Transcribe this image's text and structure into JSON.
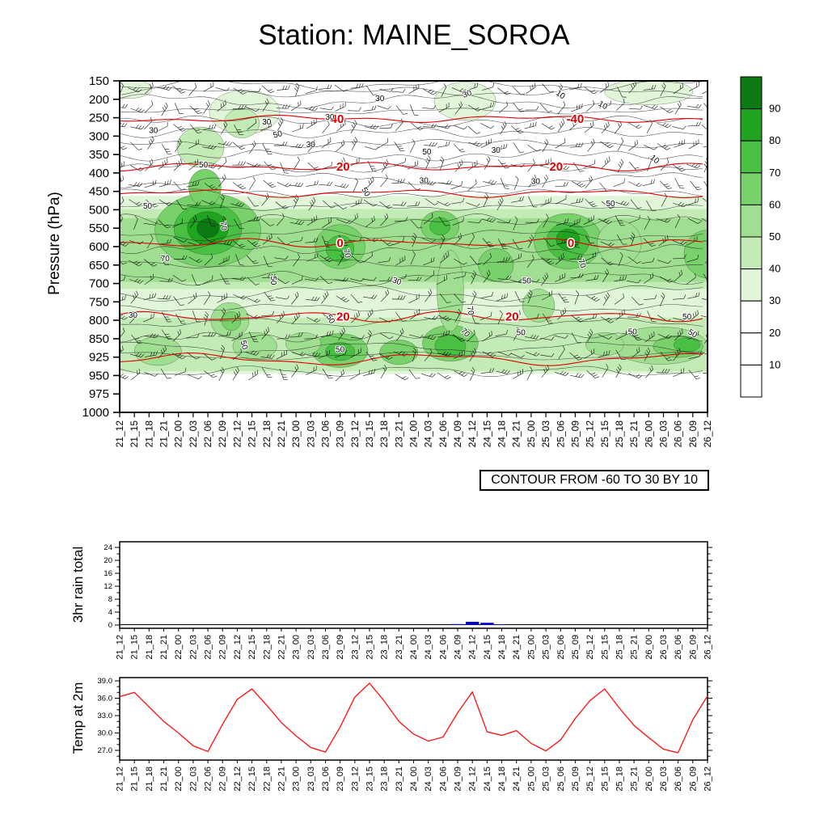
{
  "title": "Station: MAINE_SOROA",
  "labels": {
    "pressure_axis": "Pressure (hPa)",
    "rain_axis": "3hr rain total",
    "temp_axis": "Temp at 2m",
    "contour_note": "CONTOUR FROM -60 TO 30 BY 10"
  },
  "chart_data": [
    {
      "type": "heatmap",
      "name": "pressure-time cross section with shaded field, red temperature contours and wind barbs",
      "title": "Station: MAINE_SOROA",
      "ylabel": "Pressure (hPa)",
      "yticks": [
        150,
        200,
        250,
        300,
        350,
        400,
        450,
        500,
        550,
        600,
        650,
        700,
        750,
        800,
        850,
        925,
        950,
        975,
        1000
      ],
      "x": [
        "21_12",
        "21_15",
        "21_18",
        "21_21",
        "22_00",
        "22_03",
        "22_06",
        "22_09",
        "22_12",
        "22_15",
        "22_18",
        "22_21",
        "23_00",
        "23_03",
        "23_06",
        "23_09",
        "23_12",
        "23_15",
        "23_18",
        "23_21",
        "24_00",
        "24_03",
        "24_06",
        "24_09",
        "24_12",
        "24_15",
        "24_18",
        "24_21",
        "25_00",
        "25_03",
        "25_06",
        "25_09",
        "25_12",
        "25_15",
        "25_18",
        "25_21",
        "26_00",
        "26_03",
        "26_06",
        "26_09",
        "26_12"
      ],
      "contour_note": "CONTOUR FROM -60 TO 30 BY 10",
      "wind_barbs": "wind barbs plotted at every 3 h step and ~every pressure level; individual directions not legible at this scale",
      "colorbar": {
        "boundary_labels": [
          90,
          80,
          70,
          60,
          50,
          40,
          30,
          20,
          10
        ],
        "cell_colors_top_to_bottom": [
          "#0b7a12",
          "#20a41f",
          "#49bf44",
          "#78d16a",
          "#a0df91",
          "#c3ebb5",
          "#e1f6d9",
          "#ffffff",
          "#ffffff",
          "#ffffff"
        ]
      },
      "shading_note": "green shaded classes 30-90 (estimated regions below), white below 30; shading ends at 950 hPa",
      "bands": [
        {
          "p0": 462,
          "p1": 948,
          "lv": 30
        },
        {
          "p0": 498,
          "p1": 715,
          "lv": 40
        },
        {
          "p0": 523,
          "p1": 696,
          "lv": 50
        },
        {
          "p0": 793,
          "p1": 944,
          "lv": 40
        }
      ],
      "blobs": [
        {
          "t": 6,
          "p": 555,
          "rt": 3.6,
          "rp": 100,
          "lv": 60
        },
        {
          "t": 6,
          "p": 552,
          "rt": 2.3,
          "rp": 70,
          "lv": 70
        },
        {
          "t": 6,
          "p": 550,
          "rt": 1.4,
          "rp": 45,
          "lv": 80
        },
        {
          "t": 6,
          "p": 550,
          "rt": 0.75,
          "rp": 26,
          "lv": 90
        },
        {
          "t": 5.8,
          "p": 440,
          "rt": 1.1,
          "rp": 50,
          "lv": 60
        },
        {
          "t": 5.5,
          "p": 330,
          "rt": 1.6,
          "rp": 55,
          "lv": 40
        },
        {
          "t": 8.5,
          "p": 235,
          "rt": 2.4,
          "rp": 60,
          "lv": 30
        },
        {
          "t": 8.3,
          "p": 265,
          "rt": 1.2,
          "rp": 40,
          "lv": 40
        },
        {
          "t": 15,
          "p": 600,
          "rt": 1.7,
          "rp": 60,
          "lv": 60
        },
        {
          "t": 15,
          "p": 606,
          "rt": 0.95,
          "rp": 36,
          "lv": 70
        },
        {
          "t": 21.8,
          "p": 545,
          "rt": 1.3,
          "rp": 42,
          "lv": 60
        },
        {
          "t": 21.8,
          "p": 545,
          "rt": 0.7,
          "rp": 24,
          "lv": 70
        },
        {
          "t": 25.6,
          "p": 650,
          "rt": 1.2,
          "rp": 45,
          "lv": 60
        },
        {
          "t": 30.5,
          "p": 585,
          "rt": 2.3,
          "rp": 75,
          "lv": 60
        },
        {
          "t": 30.5,
          "p": 585,
          "rt": 1.45,
          "rp": 50,
          "lv": 70
        },
        {
          "t": 30.5,
          "p": 580,
          "rt": 0.8,
          "rp": 28,
          "lv": 80
        },
        {
          "t": 40,
          "p": 620,
          "rt": 1.6,
          "rp": 65,
          "lv": 60
        },
        {
          "t": 7.5,
          "p": 800,
          "rt": 1.3,
          "rp": 48,
          "lv": 50
        },
        {
          "t": 7.6,
          "p": 802,
          "rt": 0.65,
          "rp": 26,
          "lv": 60
        },
        {
          "t": 9.2,
          "p": 880,
          "rt": 1.5,
          "rp": 48,
          "lv": 50
        },
        {
          "t": 15,
          "p": 898,
          "rt": 1.9,
          "rp": 48,
          "lv": 60
        },
        {
          "t": 15,
          "p": 902,
          "rt": 1.0,
          "rp": 30,
          "lv": 70
        },
        {
          "t": 22.5,
          "p": 868,
          "rt": 1.9,
          "rp": 60,
          "lv": 60
        },
        {
          "t": 22.5,
          "p": 878,
          "rt": 1.05,
          "rp": 40,
          "lv": 70
        },
        {
          "t": 22.5,
          "p": 720,
          "rt": 0.9,
          "rp": 110,
          "lv": 50
        },
        {
          "t": 36.8,
          "p": 878,
          "rt": 3.2,
          "rp": 58,
          "lv": 50
        },
        {
          "t": 38,
          "p": 882,
          "rt": 1.7,
          "rp": 42,
          "lv": 60
        },
        {
          "t": 38.6,
          "p": 875,
          "rt": 0.9,
          "rp": 28,
          "lv": 70
        },
        {
          "t": 33,
          "p": 872,
          "rt": 1.3,
          "rp": 42,
          "lv": 50
        },
        {
          "t": 2.6,
          "p": 900,
          "rt": 1.6,
          "rp": 42,
          "lv": 50
        },
        {
          "t": 23.5,
          "p": 205,
          "rt": 2.1,
          "rp": 52,
          "lv": 30
        },
        {
          "t": 36,
          "p": 180,
          "rt": 3.0,
          "rp": 40,
          "lv": 30
        },
        {
          "t": 0.6,
          "p": 172,
          "rt": 1.6,
          "rp": 30,
          "lv": 30
        },
        {
          "t": 12.5,
          "p": 870,
          "rt": 1.2,
          "rp": 40,
          "lv": 50
        },
        {
          "t": 19,
          "p": 905,
          "rt": 1.3,
          "rp": 35,
          "lv": 60
        },
        {
          "t": 28.5,
          "p": 760,
          "rt": 1.1,
          "rp": 45,
          "lv": 50
        },
        {
          "t": 34,
          "p": 590,
          "rt": 1.5,
          "rp": 60,
          "lv": 50
        }
      ],
      "red_contours": [
        {
          "p": 253,
          "amp": 4,
          "labels": [
            {
              "text": "40",
              "t": 14.8
            },
            {
              "text": "-40",
              "t": 31.0
            }
          ]
        },
        {
          "p": 383,
          "amp": 5,
          "labels": [
            {
              "text": "20",
              "t": 15.2
            },
            {
              "text": "20",
              "t": 29.7
            }
          ]
        },
        {
          "p": 455,
          "amp": 4,
          "labels": []
        },
        {
          "p": 590,
          "amp": 5,
          "labels": [
            {
              "text": "0",
              "t": 15.0
            },
            {
              "text": "0",
              "t": 30.7
            }
          ]
        },
        {
          "p": 790,
          "amp": 5,
          "labels": [
            {
              "text": "20",
              "t": 15.2
            },
            {
              "text": "20",
              "t": 26.7
            }
          ]
        },
        {
          "p": 928,
          "amp": 9,
          "labels": []
        }
      ],
      "black_contour_labels": [
        {
          "text": "30",
          "t": 17.7,
          "p": 205,
          "rot": 0
        },
        {
          "text": "30",
          "t": 23.7,
          "p": 192,
          "rot": -20
        },
        {
          "text": "10",
          "t": 32.8,
          "p": 222,
          "rot": 30
        },
        {
          "text": "10",
          "t": 36.3,
          "p": 368,
          "rot": 40
        },
        {
          "text": "30",
          "t": 10.0,
          "p": 268,
          "rot": 0
        },
        {
          "text": "30",
          "t": 2.3,
          "p": 292,
          "rot": 0
        },
        {
          "text": "50",
          "t": 10.8,
          "p": 302,
          "rot": -15
        },
        {
          "text": "50",
          "t": 5.7,
          "p": 385,
          "rot": 0
        },
        {
          "text": "70",
          "t": 6.9,
          "p": 545,
          "rot": 80
        },
        {
          "text": "70",
          "t": 3.1,
          "p": 640,
          "rot": 0
        },
        {
          "text": "70",
          "t": 15.3,
          "p": 620,
          "rot": 75
        },
        {
          "text": "70",
          "t": 31.3,
          "p": 648,
          "rot": 70
        },
        {
          "text": "50",
          "t": 16.6,
          "p": 455,
          "rot": 60
        },
        {
          "text": "50",
          "t": 27.7,
          "p": 700,
          "rot": 0
        },
        {
          "text": "50",
          "t": 33.4,
          "p": 490,
          "rot": 0
        },
        {
          "text": "30",
          "t": 28.3,
          "p": 430,
          "rot": 0
        },
        {
          "text": "50",
          "t": 1.9,
          "p": 497,
          "rot": 0
        },
        {
          "text": "50",
          "t": 20.9,
          "p": 350,
          "rot": 0
        },
        {
          "text": "30",
          "t": 20.7,
          "p": 428,
          "rot": 0
        },
        {
          "text": "70",
          "t": 23.7,
          "p": 775,
          "rot": 80
        },
        {
          "text": "70",
          "t": 23.4,
          "p": 838,
          "rot": 45
        },
        {
          "text": "50",
          "t": 10.3,
          "p": 692,
          "rot": 90
        },
        {
          "text": "50",
          "t": 14.2,
          "p": 800,
          "rot": 60
        },
        {
          "text": "50",
          "t": 27.3,
          "p": 840,
          "rot": 0
        },
        {
          "text": "50",
          "t": 38.6,
          "p": 798,
          "rot": 0
        },
        {
          "text": "50",
          "t": 38.9,
          "p": 842,
          "rot": 30
        },
        {
          "text": "30",
          "t": 0.9,
          "p": 793,
          "rot": 0
        },
        {
          "text": "50",
          "t": 8.3,
          "p": 878,
          "rot": 75
        },
        {
          "text": "30",
          "t": 13.0,
          "p": 330,
          "rot": 0
        },
        {
          "text": "30",
          "t": 18.8,
          "p": 700,
          "rot": 20
        },
        {
          "text": "30",
          "t": 25.6,
          "p": 345,
          "rot": 0
        },
        {
          "text": "10",
          "t": 29.9,
          "p": 193,
          "rot": 35
        },
        {
          "text": "30",
          "t": 14.3,
          "p": 255,
          "rot": 0
        },
        {
          "text": "50",
          "t": 15.0,
          "p": 905,
          "rot": 0
        },
        {
          "text": "50",
          "t": 34.9,
          "p": 838,
          "rot": 0
        }
      ]
    },
    {
      "type": "bar",
      "title": "3hr rain total",
      "ylabel": "3hr rain total",
      "yticks": [
        0,
        4,
        8,
        12,
        16,
        20,
        24
      ],
      "ylim": [
        0,
        26
      ],
      "bar_color": "#0000cc",
      "x": [
        "21_12",
        "21_15",
        "21_18",
        "21_21",
        "22_00",
        "22_03",
        "22_06",
        "22_09",
        "22_12",
        "22_15",
        "22_18",
        "22_21",
        "23_00",
        "23_03",
        "23_06",
        "23_09",
        "23_12",
        "23_15",
        "23_18",
        "23_21",
        "24_00",
        "24_03",
        "24_06",
        "24_09",
        "24_12",
        "24_15",
        "24_18",
        "24_21",
        "25_00",
        "25_03",
        "25_06",
        "25_09",
        "25_12",
        "25_15",
        "25_18",
        "25_21",
        "26_00",
        "26_03",
        "26_06",
        "26_09",
        "26_12"
      ],
      "values": [
        0,
        0,
        0,
        0,
        0,
        0,
        0,
        0,
        0,
        0,
        0,
        0,
        0,
        0,
        0,
        0,
        0,
        0,
        0,
        0,
        0,
        0,
        0,
        0.3,
        1.0,
        0.7,
        0.2,
        0,
        0,
        0,
        0,
        0,
        0,
        0,
        0,
        0,
        0,
        0,
        0,
        0,
        0
      ]
    },
    {
      "type": "line",
      "title": "Temp at 2m",
      "ylabel": "Temp at 2m",
      "yticks": [
        "39.0",
        "36.0",
        "33.0",
        "30.0",
        "27.0"
      ],
      "ylim": [
        25.3,
        39.6
      ],
      "line_color": "#ff1a1a",
      "x": [
        "21_12",
        "21_15",
        "21_18",
        "21_21",
        "22_00",
        "22_03",
        "22_06",
        "22_09",
        "22_12",
        "22_15",
        "22_18",
        "22_21",
        "23_00",
        "23_03",
        "23_06",
        "23_09",
        "23_12",
        "23_15",
        "23_18",
        "23_21",
        "24_00",
        "24_03",
        "24_06",
        "24_09",
        "24_12",
        "24_15",
        "24_18",
        "24_21",
        "25_00",
        "25_03",
        "25_06",
        "25_09",
        "25_12",
        "25_15",
        "25_18",
        "25_21",
        "26_00",
        "26_03",
        "26_06",
        "26_09",
        "26_12"
      ],
      "values": [
        36.3,
        37.0,
        34.5,
        32.0,
        30.0,
        27.8,
        26.8,
        31.5,
        35.8,
        37.6,
        34.8,
        31.8,
        29.5,
        27.5,
        26.7,
        31.0,
        36.2,
        38.6,
        35.5,
        32.0,
        29.8,
        28.6,
        29.3,
        33.5,
        37.1,
        30.2,
        29.6,
        30.4,
        28.2,
        26.9,
        28.8,
        32.5,
        35.6,
        37.6,
        34.3,
        31.3,
        29.2,
        27.2,
        26.6,
        32.3,
        36.4
      ]
    }
  ]
}
